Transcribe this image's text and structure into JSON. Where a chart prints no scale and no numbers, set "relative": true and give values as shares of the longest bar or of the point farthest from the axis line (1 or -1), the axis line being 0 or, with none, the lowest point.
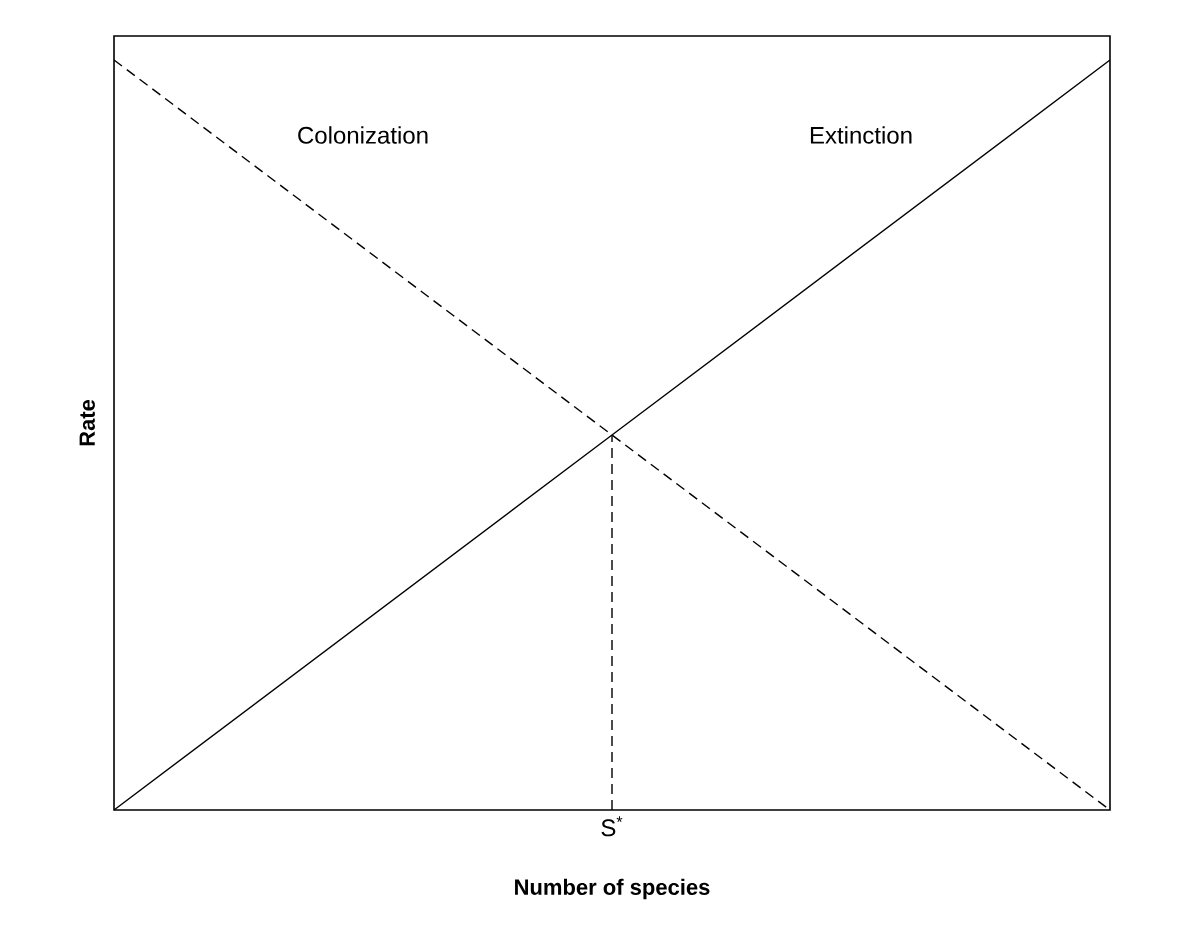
{
  "chart_data": {
    "type": "line",
    "relative": true,
    "xlabel": "Number of species",
    "ylabel": "Rate",
    "categories": [
      null,
      null,
      null
    ],
    "marker": "none",
    "annotations": [
      "S$^{*}$"
    ],
    "series": [
      {
        "name": "Colonization",
        "color": "#000000",
        "line_style": "dashed",
        "values": [
          1,
          0.5,
          0
        ]
      },
      {
        "name": "Extinction",
        "color": "#000000",
        "line_style": "solid",
        "values": [
          0,
          0.5,
          1
        ]
      }
    ]
  }
}
